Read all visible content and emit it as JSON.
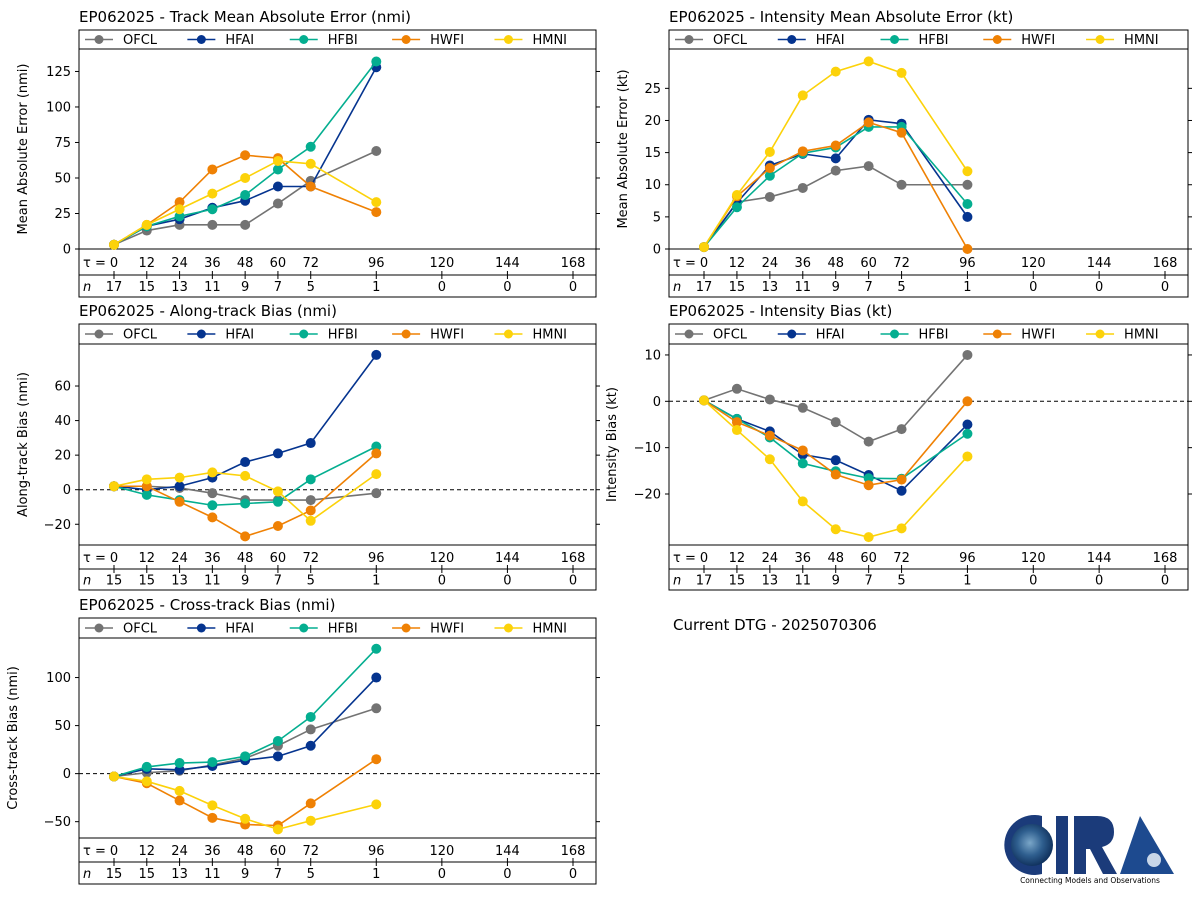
{
  "models": [
    {
      "name": "OFCL",
      "color": "#737373"
    },
    {
      "name": "HFAI",
      "color": "#05348f"
    },
    {
      "name": "HFBI",
      "color": "#04ae90"
    },
    {
      "name": "HWFI",
      "color": "#ef8104"
    },
    {
      "name": "HMNI",
      "color": "#fcd20a"
    }
  ],
  "current_dtg": "Current DTG - 2025070306",
  "logo": {
    "text": "CIRA",
    "tagline": "Connecting Models and Observations"
  },
  "chart_data": [
    {
      "id": "track-mae",
      "type": "line",
      "title": "EP062025 - Track Mean Absolute Error (nmi)",
      "ylabel": "Mean Absolute Error (nmi)",
      "ylim": [
        0,
        138
      ],
      "yticks": [
        0,
        25,
        50,
        75,
        100,
        125
      ],
      "zero_line": false,
      "tau_label": "τ = ",
      "n_label": "n",
      "x": [
        0,
        12,
        24,
        36,
        48,
        60,
        72,
        96
      ],
      "xticks": [
        0,
        12,
        24,
        36,
        48,
        60,
        72,
        96,
        120,
        144,
        168
      ],
      "n": [
        17,
        15,
        13,
        11,
        9,
        7,
        5,
        1,
        0,
        0,
        0
      ],
      "legend": "top",
      "series": [
        {
          "name": "OFCL",
          "values": [
            3,
            13,
            17,
            17,
            17,
            32,
            48,
            69
          ]
        },
        {
          "name": "HFAI",
          "values": [
            3,
            16,
            21,
            29,
            34,
            44,
            44,
            128
          ]
        },
        {
          "name": "HFBI",
          "values": [
            3,
            16,
            23,
            28,
            38,
            56,
            72,
            132
          ]
        },
        {
          "name": "HWFI",
          "values": [
            3,
            17,
            33,
            56,
            66,
            64,
            44,
            26
          ]
        },
        {
          "name": "HMNI",
          "values": [
            3,
            17,
            28,
            39,
            50,
            62,
            60,
            33
          ]
        }
      ]
    },
    {
      "id": "intensity-mae",
      "type": "line",
      "title": "EP062025 - Intensity Mean Absolute Error (kt)",
      "ylabel": "Mean Absolute Error (kt)",
      "ylim": [
        0,
        30.5
      ],
      "yticks": [
        0,
        5,
        10,
        15,
        20,
        25
      ],
      "zero_line": false,
      "tau_label": "τ = ",
      "n_label": "n",
      "x": [
        0,
        12,
        24,
        36,
        48,
        60,
        72,
        96
      ],
      "xticks": [
        0,
        12,
        24,
        36,
        48,
        60,
        72,
        96,
        120,
        144,
        168
      ],
      "n": [
        17,
        15,
        13,
        11,
        9,
        7,
        5,
        1,
        0,
        0,
        0
      ],
      "legend": "top",
      "series": [
        {
          "name": "OFCL",
          "values": [
            0.3,
            7.3,
            8.1,
            9.5,
            12.2,
            12.9,
            10,
            10
          ]
        },
        {
          "name": "HFAI",
          "values": [
            0.3,
            7.2,
            13,
            14.8,
            14.1,
            20.1,
            19.5,
            5
          ]
        },
        {
          "name": "HFBI",
          "values": [
            0.3,
            6.5,
            11.4,
            14.9,
            15.8,
            19,
            19,
            7
          ]
        },
        {
          "name": "HWFI",
          "values": [
            0.3,
            8.2,
            12.6,
            15.2,
            16.1,
            19.7,
            18.1,
            0
          ]
        },
        {
          "name": "HMNI",
          "values": [
            0.3,
            8.4,
            15.1,
            23.9,
            27.6,
            29.2,
            27.4,
            12.1
          ]
        }
      ]
    },
    {
      "id": "along-track-bias",
      "type": "line",
      "title": "EP062025 - Along-track Bias (nmi)",
      "ylabel": "Along-track Bias (nmi)",
      "ylim": [
        -32,
        82
      ],
      "yticks": [
        -20,
        0,
        20,
        40,
        60
      ],
      "zero_line": true,
      "tau_label": "τ = ",
      "n_label": "n",
      "x": [
        0,
        12,
        24,
        36,
        48,
        60,
        72,
        96
      ],
      "xticks": [
        0,
        12,
        24,
        36,
        48,
        60,
        72,
        96,
        120,
        144,
        168
      ],
      "n": [
        15,
        15,
        13,
        11,
        9,
        7,
        5,
        1,
        0,
        0,
        0
      ],
      "legend": "top",
      "series": [
        {
          "name": "OFCL",
          "values": [
            2,
            2,
            1,
            -2,
            -6,
            -6,
            -6,
            -2
          ]
        },
        {
          "name": "HFAI",
          "values": [
            2,
            0,
            2,
            7,
            16,
            21,
            27,
            78
          ]
        },
        {
          "name": "HFBI",
          "values": [
            2,
            -3,
            -6,
            -9,
            -8,
            -7,
            6,
            25
          ]
        },
        {
          "name": "HWFI",
          "values": [
            2,
            2,
            -7,
            -16,
            -27,
            -21,
            -12,
            21
          ]
        },
        {
          "name": "HMNI",
          "values": [
            2,
            6,
            7,
            10,
            8,
            -1,
            -18,
            9
          ]
        }
      ]
    },
    {
      "id": "intensity-bias",
      "type": "line",
      "title": "EP062025 - Intensity Bias (kt)",
      "ylabel": "Intensity Bias (kt)",
      "ylim": [
        -31,
        11.5
      ],
      "yticks": [
        -20,
        -10,
        0,
        10
      ],
      "zero_line": true,
      "tau_label": "τ = ",
      "n_label": "n",
      "x": [
        0,
        12,
        24,
        36,
        48,
        60,
        72,
        96
      ],
      "xticks": [
        0,
        12,
        24,
        36,
        48,
        60,
        72,
        96,
        120,
        144,
        168
      ],
      "n": [
        17,
        15,
        13,
        11,
        9,
        7,
        5,
        1,
        0,
        0,
        0
      ],
      "legend": "top",
      "series": [
        {
          "name": "OFCL",
          "values": [
            0.2,
            2.7,
            0.4,
            -1.4,
            -4.5,
            -8.7,
            -6,
            10
          ]
        },
        {
          "name": "HFAI",
          "values": [
            0.2,
            -3.8,
            -6.5,
            -11.5,
            -12.7,
            -15.9,
            -19.3,
            -5
          ]
        },
        {
          "name": "HFBI",
          "values": [
            0.2,
            -3.8,
            -7.8,
            -13.4,
            -15.1,
            -16.6,
            -16.7,
            -7
          ]
        },
        {
          "name": "HWFI",
          "values": [
            0.2,
            -4.5,
            -7.4,
            -10.6,
            -15.8,
            -18.1,
            -16.9,
            0
          ]
        },
        {
          "name": "HMNI",
          "values": [
            0.2,
            -6.2,
            -12.5,
            -21.6,
            -27.6,
            -29.3,
            -27.4,
            -11.9
          ]
        }
      ]
    },
    {
      "id": "cross-track-bias",
      "type": "line",
      "title": "EP062025 - Cross-track Bias (nmi)",
      "ylabel": "Cross-track Bias (nmi)",
      "ylim": [
        -67,
        137
      ],
      "yticks": [
        -50,
        0,
        50,
        100
      ],
      "zero_line": true,
      "tau_label": "τ = ",
      "n_label": "n",
      "x": [
        0,
        12,
        24,
        36,
        48,
        60,
        72,
        96
      ],
      "xticks": [
        0,
        12,
        24,
        36,
        48,
        60,
        72,
        96,
        120,
        144,
        168
      ],
      "n": [
        15,
        15,
        13,
        11,
        9,
        7,
        5,
        1,
        0,
        0,
        0
      ],
      "legend": "top",
      "series": [
        {
          "name": "OFCL",
          "values": [
            -3,
            1,
            3,
            9,
            16,
            29,
            46,
            68
          ]
        },
        {
          "name": "HFAI",
          "values": [
            -3,
            5,
            4,
            8,
            14,
            18,
            29,
            100
          ]
        },
        {
          "name": "HFBI",
          "values": [
            -3,
            7,
            11,
            12,
            18,
            34,
            59,
            130
          ]
        },
        {
          "name": "HWFI",
          "values": [
            -3,
            -10,
            -28,
            -46,
            -53,
            -54,
            -31,
            15
          ]
        },
        {
          "name": "HMNI",
          "values": [
            -3,
            -8,
            -18,
            -33,
            -47,
            -58,
            -49,
            -32
          ]
        }
      ]
    }
  ]
}
